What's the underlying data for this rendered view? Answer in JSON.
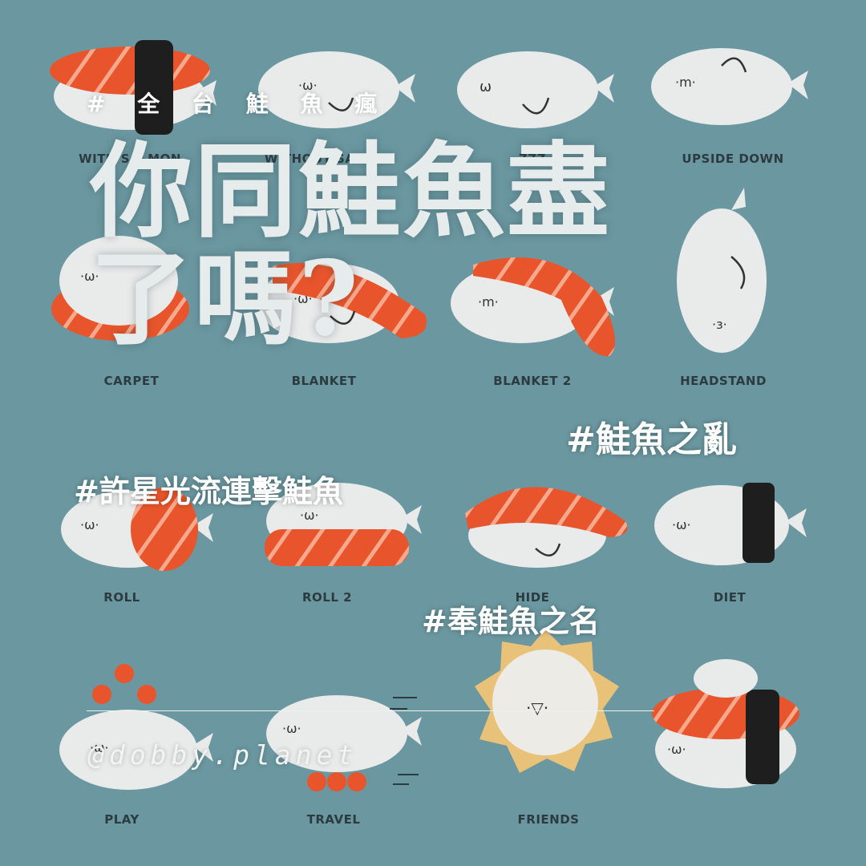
{
  "image": {
    "background_color": "#6a97a0",
    "salmon_color": "#e8552c",
    "seal_color": "#e9eaea",
    "nori_color": "#1e1e1e"
  },
  "grid_labels": [
    "WITH SALMON",
    "WITHOUT SALMON",
    "ZZZ",
    "UPSIDE DOWN",
    "CARPET",
    "BLANKET",
    "BLANKET 2",
    "HEADSTAND",
    "ROLL",
    "ROLL 2",
    "HIDE",
    "DIET",
    "PLAY",
    "TRAVEL",
    "FRIENDS"
  ],
  "overlay": {
    "top_tag": "# 全 台 鮭 魚 瘋",
    "headline_line1": "你同鮭魚盡",
    "headline_line2": "了嗎?",
    "hashtag_1": "#鮭魚之亂",
    "hashtag_2": "#許星光流連擊鮭魚",
    "hashtag_3": "#奉鮭魚之名",
    "handle": "@dobby.planet"
  }
}
